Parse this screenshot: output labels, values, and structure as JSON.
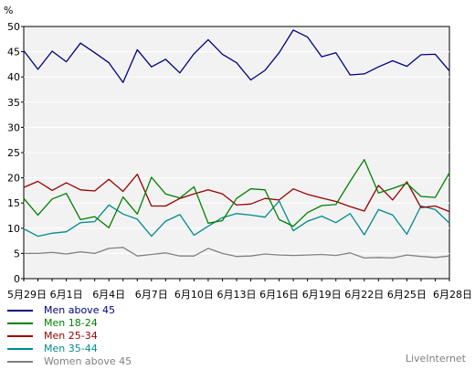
{
  "chart_data": {
    "type": "line",
    "unit_label": "%",
    "ylim": [
      0,
      50
    ],
    "y_ticks": [
      0,
      5,
      10,
      15,
      20,
      25,
      30,
      35,
      40,
      45,
      50
    ],
    "grid": true,
    "legend_placement": "bottom-left",
    "x": [
      "5月29日",
      "5月30日",
      "5月31日",
      "6月1日",
      "6月2日",
      "6月3日",
      "6月4日",
      "6月5日",
      "6月6日",
      "6月7日",
      "6月8日",
      "6月9日",
      "6月10日",
      "6月11日",
      "6月12日",
      "6月13日",
      "6月14日",
      "6月15日",
      "6月16日",
      "6月17日",
      "6月18日",
      "6月19日",
      "6月20日",
      "6月21日",
      "6月22日",
      "6月23日",
      "6月24日",
      "6月25日",
      "6月26日",
      "6月27日",
      "6月28日"
    ],
    "x_tick_labels": [
      "5月29日",
      "6月1日",
      "6月4日",
      "6月7日",
      "6月10日",
      "6月13日",
      "6月16日",
      "6月19日",
      "6月22日",
      "6月25日",
      "6月28日"
    ],
    "series": [
      {
        "name": "Men above 45",
        "color": "#000080",
        "values": [
          45.2,
          41.5,
          45.1,
          43.0,
          46.7,
          44.8,
          42.8,
          38.9,
          45.4,
          42.0,
          43.5,
          40.8,
          44.6,
          47.4,
          44.5,
          42.8,
          39.4,
          41.3,
          44.8,
          49.3,
          47.9,
          44.0,
          44.8,
          40.4,
          40.6,
          42.0,
          43.2,
          42.1,
          44.4,
          44.5,
          41.2
        ]
      },
      {
        "name": "Men 18-24",
        "color": "#008000",
        "values": [
          15.9,
          12.6,
          15.8,
          16.9,
          11.7,
          12.3,
          10.1,
          16.2,
          12.8,
          20.1,
          16.8,
          16.0,
          18.2,
          11.0,
          11.5,
          15.9,
          17.8,
          17.6,
          11.7,
          10.4,
          13.1,
          14.5,
          14.7,
          19.3,
          23.6,
          17.0,
          17.9,
          18.9,
          16.3,
          16.1,
          21.0
        ]
      },
      {
        "name": "Men 25-34",
        "color": "#990000",
        "values": [
          18.1,
          19.3,
          17.5,
          19.0,
          17.6,
          17.4,
          19.7,
          17.3,
          20.7,
          14.4,
          14.4,
          15.9,
          16.8,
          17.6,
          16.8,
          14.6,
          14.8,
          15.9,
          15.6,
          17.8,
          16.7,
          16.0,
          15.3,
          14.3,
          13.4,
          18.5,
          15.6,
          19.2,
          14.1,
          14.4,
          13.3
        ]
      },
      {
        "name": "Men 35-44",
        "color": "#008b8b",
        "values": [
          9.9,
          8.4,
          9.0,
          9.3,
          11.1,
          11.3,
          14.6,
          12.8,
          11.8,
          8.4,
          11.4,
          12.7,
          8.6,
          10.4,
          12.1,
          12.9,
          12.6,
          12.2,
          15.4,
          9.5,
          11.4,
          12.4,
          11.1,
          12.9,
          8.7,
          13.7,
          12.6,
          8.8,
          14.4,
          13.7,
          11.0
        ]
      },
      {
        "name": "Women above 45",
        "color": "#808080",
        "values": [
          5.0,
          5.0,
          5.2,
          4.9,
          5.3,
          5.0,
          6.0,
          6.2,
          4.5,
          4.8,
          5.1,
          4.5,
          4.5,
          6.0,
          5.0,
          4.4,
          4.5,
          4.9,
          4.7,
          4.6,
          4.7,
          4.8,
          4.6,
          5.1,
          4.1,
          4.2,
          4.1,
          4.7,
          4.4,
          4.2,
          4.5
        ]
      }
    ]
  },
  "branding": "LiveInternet"
}
